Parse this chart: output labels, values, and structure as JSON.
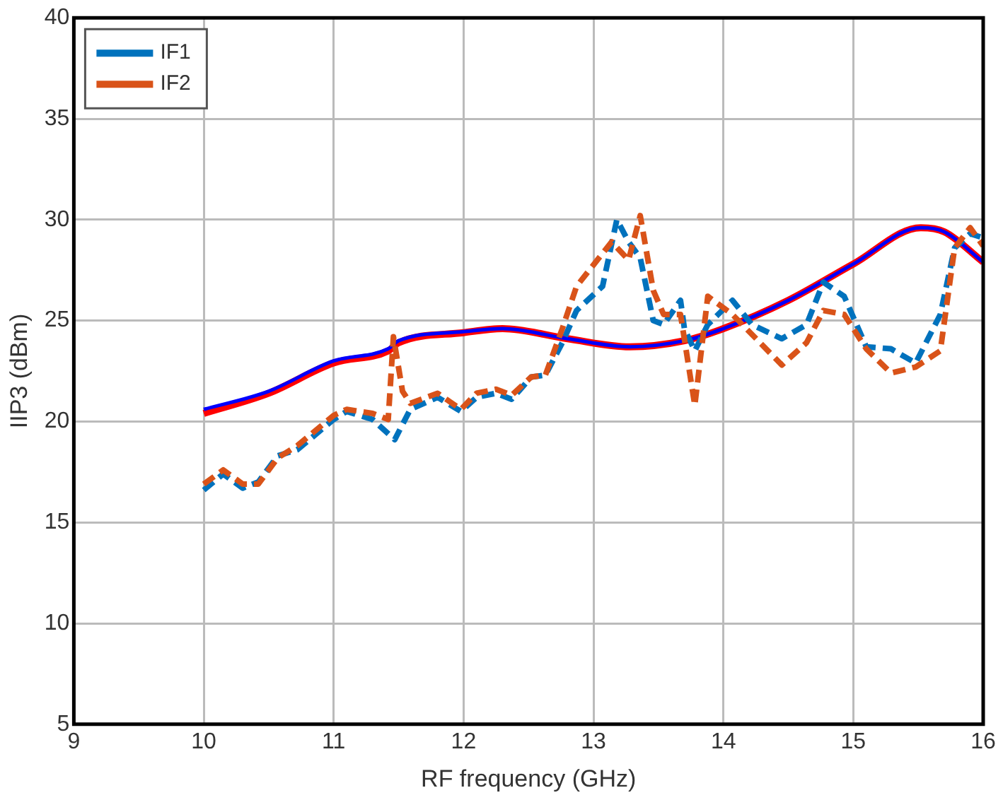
{
  "chart_data": {
    "type": "line",
    "xlabel": "RF frequency (GHz)",
    "ylabel": "IIP3 (dBm)",
    "xlim": [
      9,
      16
    ],
    "xticks": [
      9,
      10,
      11,
      12,
      13,
      14,
      15,
      16
    ],
    "ylim": [
      5,
      40
    ],
    "yticks": [
      5,
      10,
      15,
      20,
      25,
      30,
      35,
      40
    ],
    "grid": true,
    "legend": "top left",
    "marker": "none",
    "series": [
      {
        "color": "#ff0000",
        "line_style": "solid",
        "x": [
          10,
          10.5,
          11,
          11.42,
          11.5,
          12,
          12.3,
          12.8,
          13.28,
          13.7,
          14,
          14.5,
          15,
          15.52,
          15.7,
          16
        ],
        "values": [
          20.4,
          21.4,
          22.9,
          23.5,
          23.9,
          24.4,
          24.6,
          24.1,
          23.7,
          24.0,
          24.6,
          26.0,
          27.8,
          29.6,
          29.4,
          27.9
        ]
      },
      {
        "color": "#0000ff",
        "line_style": "solid",
        "x": [
          10,
          10.5,
          11,
          11.42,
          11.5,
          12,
          12.3,
          12.8,
          13.28,
          13.7,
          14,
          14.5,
          15,
          15.52,
          15.7,
          16
        ],
        "values": [
          20.6,
          21.5,
          23.0,
          23.6,
          24.0,
          24.45,
          24.6,
          24.1,
          23.7,
          24.0,
          24.6,
          26.0,
          27.8,
          29.6,
          29.4,
          27.9
        ]
      },
      {
        "name": "IF1",
        "color": "#0072bd",
        "line_style": "dashed",
        "x": [
          10,
          10.15,
          10.3,
          10.42,
          10.57,
          10.72,
          11,
          11.1,
          11.3,
          11.47,
          11.59,
          11.8,
          11.98,
          12.1,
          12.25,
          12.37,
          12.52,
          12.63,
          12.76,
          12.87,
          13.07,
          13.18,
          13.27,
          13.36,
          13.46,
          13.54,
          13.67,
          13.7,
          13.78,
          13.88,
          14.07,
          14.22,
          14.45,
          14.64,
          14.77,
          14.93,
          15.1,
          15.29,
          15.48,
          15.67,
          15.78,
          15.9,
          16
        ],
        "values": [
          16.6,
          17.4,
          16.7,
          17.0,
          18.3,
          18.6,
          20.1,
          20.5,
          20.1,
          19.1,
          20.6,
          21.2,
          20.5,
          21.2,
          21.4,
          21.1,
          22.2,
          22.3,
          23.9,
          25.5,
          26.7,
          30.0,
          28.9,
          28.1,
          25.0,
          24.8,
          26.0,
          24.6,
          23.5,
          24.8,
          26.0,
          24.8,
          24.1,
          24.8,
          26.9,
          26.2,
          23.7,
          23.6,
          22.9,
          25.3,
          28.6,
          29.3,
          29.1
        ]
      },
      {
        "name": "IF2",
        "color": "#d95319",
        "line_style": "dashed",
        "x": [
          10,
          10.15,
          10.3,
          10.42,
          10.57,
          10.72,
          11,
          11.1,
          11.3,
          11.42,
          11.46,
          11.53,
          11.59,
          11.8,
          11.98,
          12.1,
          12.25,
          12.37,
          12.52,
          12.63,
          12.76,
          12.87,
          13.14,
          13.27,
          13.36,
          13.46,
          13.54,
          13.67,
          13.78,
          13.88,
          14.07,
          14.45,
          14.64,
          14.77,
          14.93,
          15.1,
          15.29,
          15.48,
          15.67,
          15.78,
          15.9,
          16
        ],
        "values": [
          16.9,
          17.6,
          16.9,
          16.9,
          18.2,
          18.8,
          20.3,
          20.6,
          20.4,
          20.1,
          24.2,
          21.5,
          20.9,
          21.4,
          20.6,
          21.4,
          21.6,
          21.3,
          22.2,
          22.3,
          24.6,
          26.7,
          28.9,
          28.0,
          30.2,
          26.5,
          25.3,
          25.3,
          20.8,
          26.2,
          25.3,
          22.8,
          23.9,
          25.5,
          25.3,
          23.6,
          22.4,
          22.7,
          23.5,
          28.6,
          29.6,
          28.7
        ]
      }
    ]
  }
}
